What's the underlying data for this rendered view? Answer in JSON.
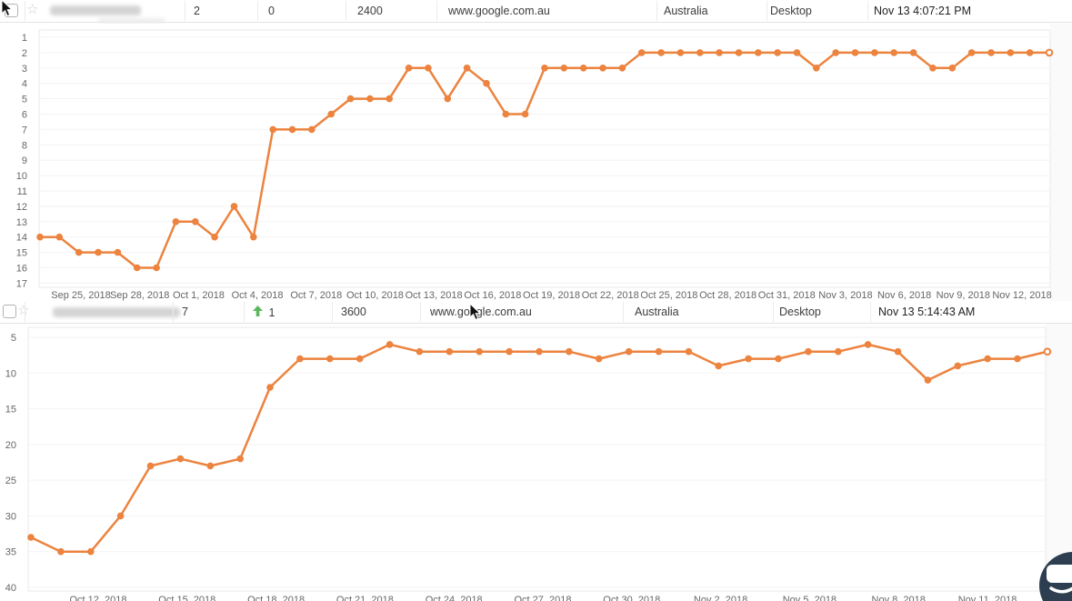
{
  "colors": {
    "line": "#ec833f",
    "rank_blue": "#4a9fd9",
    "up_green": "#5cb85c",
    "chat_bubble": "#2d3e50"
  },
  "rows": [
    {
      "keyword_redacted": true,
      "selected": false,
      "starred": false,
      "rank": "2",
      "change": "0",
      "change_direction": "none",
      "search_volume": "2400",
      "url": "www.google.com.au",
      "location": "Australia",
      "device": "Desktop",
      "checked_at": "Nov 13 4:07:21 PM"
    },
    {
      "keyword_redacted": true,
      "selected": false,
      "starred": false,
      "rank": "7",
      "change": "1",
      "change_direction": "up",
      "search_volume": "3600",
      "url": "www.google.com.au",
      "location": "Australia",
      "device": "Desktop",
      "checked_at": "Nov 13 5:14:43 AM"
    }
  ],
  "chart_data": [
    {
      "type": "line",
      "title": "",
      "xlabel": "",
      "ylabel": "",
      "y_inverted": true,
      "ylim": [
        1,
        17
      ],
      "grid": true,
      "legend": "none",
      "y_ticks": [
        1,
        2,
        3,
        4,
        5,
        6,
        7,
        8,
        9,
        10,
        11,
        12,
        13,
        14,
        15,
        16,
        17
      ],
      "x_tick_labels": [
        "Sep 25, 2018",
        "Sep 28, 2018",
        "Oct 1, 2018",
        "Oct 4, 2018",
        "Oct 7, 2018",
        "Oct 10, 2018",
        "Oct 13, 2018",
        "Oct 16, 2018",
        "Oct 19, 2018",
        "Oct 22, 2018",
        "Oct 25, 2018",
        "Oct 28, 2018",
        "Oct 31, 2018",
        "Nov 3, 2018",
        "Nov 6, 2018",
        "Nov 9, 2018",
        "Nov 12, 2018"
      ],
      "series": [
        {
          "name": "rank",
          "values": [
            14,
            14,
            15,
            15,
            15,
            16,
            16,
            13,
            13,
            14,
            12,
            14,
            7,
            7,
            7,
            6,
            5,
            5,
            5,
            3,
            3,
            5,
            3,
            4,
            6,
            6,
            3,
            3,
            3,
            3,
            3,
            2,
            2,
            2,
            2,
            2,
            2,
            2,
            2,
            2,
            3,
            2,
            2,
            2,
            2,
            2,
            3,
            3,
            2,
            2,
            2,
            2,
            2
          ]
        }
      ]
    },
    {
      "type": "line",
      "title": "",
      "xlabel": "",
      "ylabel": "",
      "y_inverted": true,
      "ylim": [
        5,
        40
      ],
      "grid": true,
      "legend": "none",
      "y_ticks": [
        5,
        10,
        15,
        20,
        25,
        30,
        35,
        40
      ],
      "x_tick_labels": [
        "Oct 12, 2018",
        "Oct 15, 2018",
        "Oct 18, 2018",
        "Oct 21, 2018",
        "Oct 24, 2018",
        "Oct 27, 2018",
        "Oct 30, 2018",
        "Nov 2, 2018",
        "Nov 5, 2018",
        "Nov 8, 2018",
        "Nov 11, 2018"
      ],
      "series": [
        {
          "name": "rank",
          "values": [
            33,
            35,
            35,
            30,
            23,
            22,
            23,
            22,
            12,
            8,
            8,
            8,
            6,
            7,
            7,
            7,
            7,
            7,
            7,
            8,
            7,
            7,
            7,
            9,
            8,
            8,
            7,
            7,
            6,
            7,
            11,
            9,
            8,
            8,
            7
          ]
        }
      ]
    }
  ],
  "chat": {
    "launcher": "chat-smiley"
  }
}
